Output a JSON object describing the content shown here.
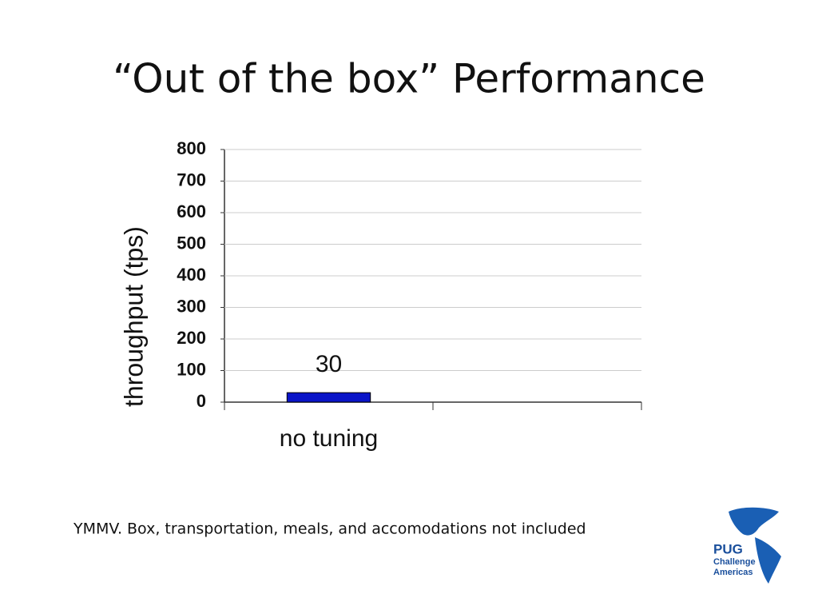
{
  "chart_data": {
    "type": "bar",
    "title": "“Out of the box” Performance",
    "ylabel": "throughput (tps)",
    "categories": [
      "no tuning",
      null
    ],
    "values": [
      30,
      null
    ],
    "color": "#0a14c8",
    "ylim": [
      0,
      800
    ],
    "yticks": [
      0,
      100,
      200,
      300,
      400,
      500,
      600,
      700,
      800
    ],
    "grid": true
  },
  "footnote": "YMMV.  Box, transportation, meals, and accomodations not included",
  "logo": {
    "title": "PUG",
    "line1": "Challenge",
    "line2": "Americas"
  }
}
